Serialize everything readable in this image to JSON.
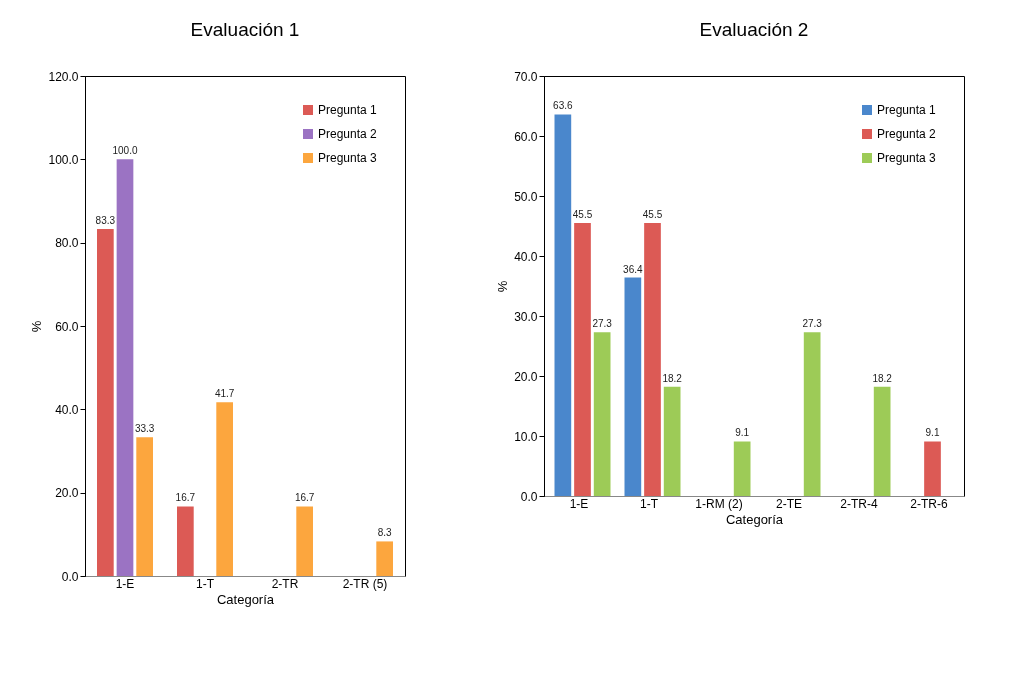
{
  "chart_data": [
    {
      "type": "bar",
      "title": "Evaluación 1",
      "xlabel": "Categoría",
      "ylabel": "%",
      "categories": [
        "1-E",
        "1-T",
        "2-TR",
        "2-TR (5)"
      ],
      "series": [
        {
          "name": "Pregunta 1",
          "color": "#dc5a55",
          "values": [
            83.3,
            16.7,
            null,
            null
          ],
          "value_labels": [
            "83.3",
            "16.7",
            null,
            null
          ]
        },
        {
          "name": "Pregunta 2",
          "color": "#9b73c3",
          "values": [
            100.0,
            null,
            null,
            null
          ],
          "value_labels": [
            "100.0",
            null,
            null,
            null
          ]
        },
        {
          "name": "Pregunta 3",
          "color": "#fca63e",
          "values": [
            33.3,
            41.7,
            16.7,
            8.3
          ],
          "value_labels": [
            "33.3",
            "41.7",
            "16.7",
            "8.3"
          ]
        }
      ],
      "ylim": [
        0,
        120
      ],
      "yticks": [
        {
          "value": 0,
          "label": "0.0"
        },
        {
          "value": 20,
          "label": "20.0"
        },
        {
          "value": 40,
          "label": "40.0"
        },
        {
          "value": 60,
          "label": "60.0"
        },
        {
          "value": 80,
          "label": "80.0"
        },
        {
          "value": 100,
          "label": "100.0"
        },
        {
          "value": 120,
          "label": "120.0"
        }
      ],
      "legend": "top right",
      "grid": false
    },
    {
      "type": "bar",
      "title": "Evaluación 2",
      "xlabel": "Categoría",
      "ylabel": "%",
      "categories": [
        "1-E",
        "1-T",
        "1-RM (2)",
        "2-TE",
        "2-TR-4",
        "2-TR-6"
      ],
      "series": [
        {
          "name": "Pregunta 1",
          "color": "#4a87cc",
          "values": [
            63.6,
            36.4,
            null,
            null,
            null,
            null
          ],
          "value_labels": [
            "63.6",
            "36.4",
            null,
            null,
            null,
            null
          ]
        },
        {
          "name": "Pregunta 2",
          "color": "#dc5a55",
          "values": [
            45.5,
            45.5,
            null,
            null,
            null,
            9.1
          ],
          "value_labels": [
            "45.5",
            "45.5",
            null,
            null,
            null,
            "9.1"
          ]
        },
        {
          "name": "Pregunta 3",
          "color": "#9dcb57",
          "values": [
            27.3,
            18.2,
            9.1,
            27.3,
            18.2,
            null
          ],
          "value_labels": [
            "27.3",
            "18.2",
            "9.1",
            "27.3",
            "18.2",
            null
          ]
        }
      ],
      "ylim": [
        0,
        70
      ],
      "yticks": [
        {
          "value": 0,
          "label": "0.0"
        },
        {
          "value": 10,
          "label": "10.0"
        },
        {
          "value": 20,
          "label": "20.0"
        },
        {
          "value": 30,
          "label": "30.0"
        },
        {
          "value": 40,
          "label": "40.0"
        },
        {
          "value": 50,
          "label": "50.0"
        },
        {
          "value": 60,
          "label": "60.0"
        },
        {
          "value": 70,
          "label": "70.0"
        }
      ],
      "legend": "top right",
      "grid": false
    }
  ]
}
